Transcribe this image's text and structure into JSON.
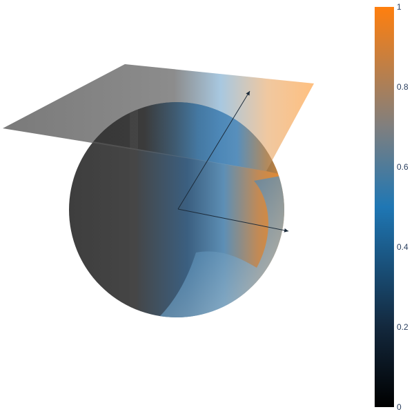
{
  "chart_data": {
    "type": "surface-3d",
    "title": "",
    "colorscale": {
      "name": "custom-black-blue-orange",
      "stops": [
        [
          0.0,
          "#000000"
        ],
        [
          0.2,
          "#1a3550"
        ],
        [
          0.5,
          "#1f77b4"
        ],
        [
          0.7,
          "#7f7f7f"
        ],
        [
          1.0,
          "#ff7f0e"
        ]
      ],
      "range": [
        0,
        1
      ]
    },
    "colorbar": {
      "ticks": [
        0,
        0.2,
        0.4,
        0.6,
        0.8,
        1
      ],
      "tick_labels": [
        "0",
        "0.2",
        "0.4",
        "0.6",
        "0.8",
        "1"
      ]
    },
    "traces": [
      {
        "kind": "surface",
        "shape": "plane"
      },
      {
        "kind": "surface",
        "shape": "sphere"
      },
      {
        "kind": "vector",
        "label": ""
      },
      {
        "kind": "vector",
        "label": ""
      }
    ],
    "axes_visible": false,
    "grid": false
  }
}
